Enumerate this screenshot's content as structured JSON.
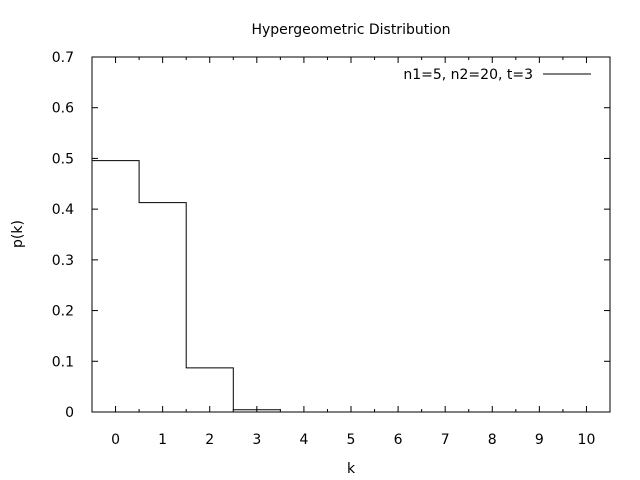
{
  "chart_data": {
    "type": "line",
    "title": "Hypergeometric Distribution",
    "xlabel": "k",
    "ylabel": "p(k)",
    "xlim": [
      -0.5,
      10.5
    ],
    "ylim": [
      0,
      0.7
    ],
    "x_ticks": [
      0,
      1,
      2,
      3,
      4,
      5,
      6,
      7,
      8,
      9,
      10
    ],
    "x_tick_labels": [
      "0",
      "1",
      "2",
      "3",
      "4",
      "5",
      "6",
      "7",
      "8",
      "9",
      "10"
    ],
    "y_ticks": [
      0,
      0.1,
      0.2,
      0.3,
      0.4,
      0.5,
      0.6,
      0.7
    ],
    "y_tick_labels": [
      "0",
      "0.1",
      "0.2",
      "0.3",
      "0.4",
      "0.5",
      "0.6",
      "0.7"
    ],
    "legend_position": "top-right",
    "grid": false,
    "step_style": "histeps",
    "series": [
      {
        "name": "n1=5, n2=20, t=3",
        "color": "#000000",
        "x": [
          0,
          1,
          2,
          3
        ],
        "y": [
          0.4957,
          0.413,
          0.087,
          0.0043
        ]
      }
    ]
  }
}
